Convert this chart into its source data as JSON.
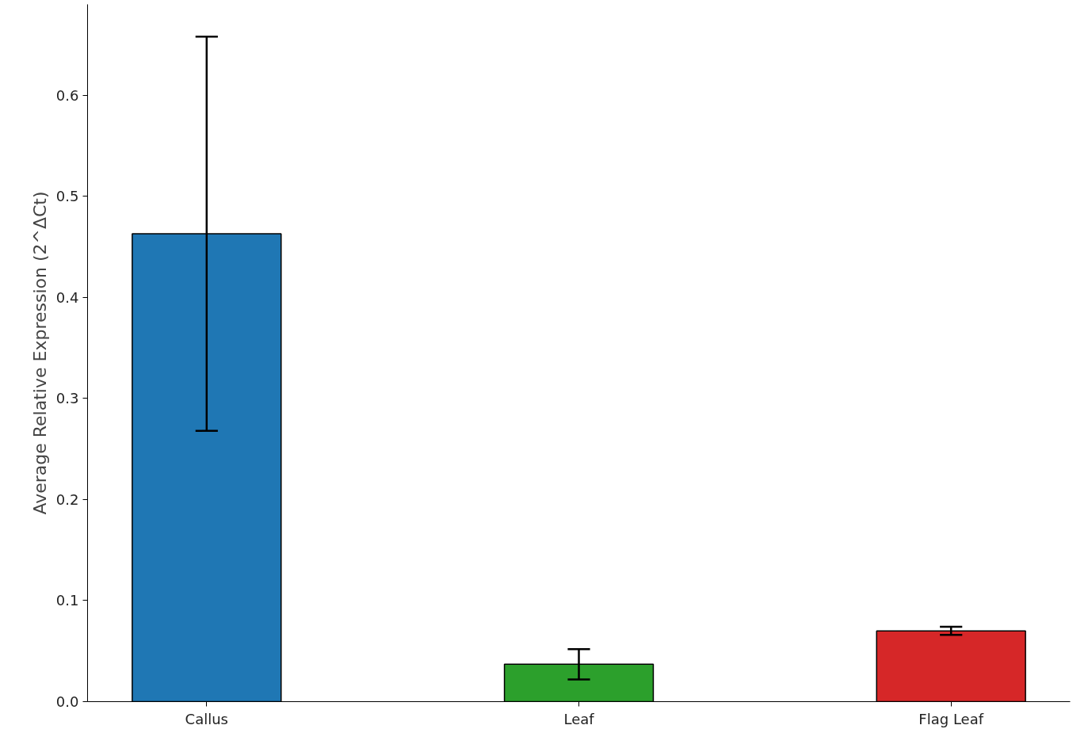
{
  "chart_data": {
    "type": "bar",
    "ylabel": "Average Relative Expression (2^ΔCt)",
    "categories": [
      "Callus",
      "Leaf",
      "Flag Leaf"
    ],
    "values": [
      0.463,
      0.037,
      0.07
    ],
    "colors": [
      "#1f77b4",
      "#2ca02c",
      "#d62728"
    ],
    "errors": [
      0.195,
      0.015,
      0.004
    ],
    "ylim": [
      0,
      0.69
    ],
    "yticks": [
      {
        "value": 0,
        "label": "0.0"
      },
      0.1,
      0.2,
      0.3,
      0.4,
      0.5,
      0.6
    ],
    "grid": false
  }
}
